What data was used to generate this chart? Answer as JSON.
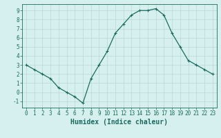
{
  "x": [
    0,
    1,
    2,
    3,
    4,
    5,
    6,
    7,
    8,
    9,
    10,
    11,
    12,
    13,
    14,
    15,
    16,
    17,
    18,
    19,
    20,
    21,
    22,
    23
  ],
  "y": [
    3,
    2.5,
    2,
    1.5,
    0.5,
    0,
    -0.5,
    -1.2,
    1.5,
    3,
    4.5,
    6.5,
    7.5,
    8.5,
    9,
    9,
    9.2,
    8.5,
    6.5,
    5,
    3.5,
    3,
    2.5,
    2
  ],
  "line_color": "#1a6b5e",
  "marker": "+",
  "marker_size": 3,
  "marker_lw": 0.8,
  "line_width": 0.9,
  "bg_color": "#d6efef",
  "grid_color": "#b8d8d8",
  "xlabel": "Humidex (Indice chaleur)",
  "ylabel": "",
  "xlim": [
    -0.5,
    23.5
  ],
  "ylim": [
    -1.7,
    9.7
  ],
  "yticks": [
    -1,
    0,
    1,
    2,
    3,
    4,
    5,
    6,
    7,
    8,
    9
  ],
  "xticks": [
    0,
    1,
    2,
    3,
    4,
    5,
    6,
    7,
    8,
    9,
    10,
    11,
    12,
    13,
    14,
    15,
    16,
    17,
    18,
    19,
    20,
    21,
    22,
    23
  ],
  "tick_fontsize": 5.5,
  "xlabel_fontsize": 7.0,
  "spine_color": "#1a6b5e"
}
